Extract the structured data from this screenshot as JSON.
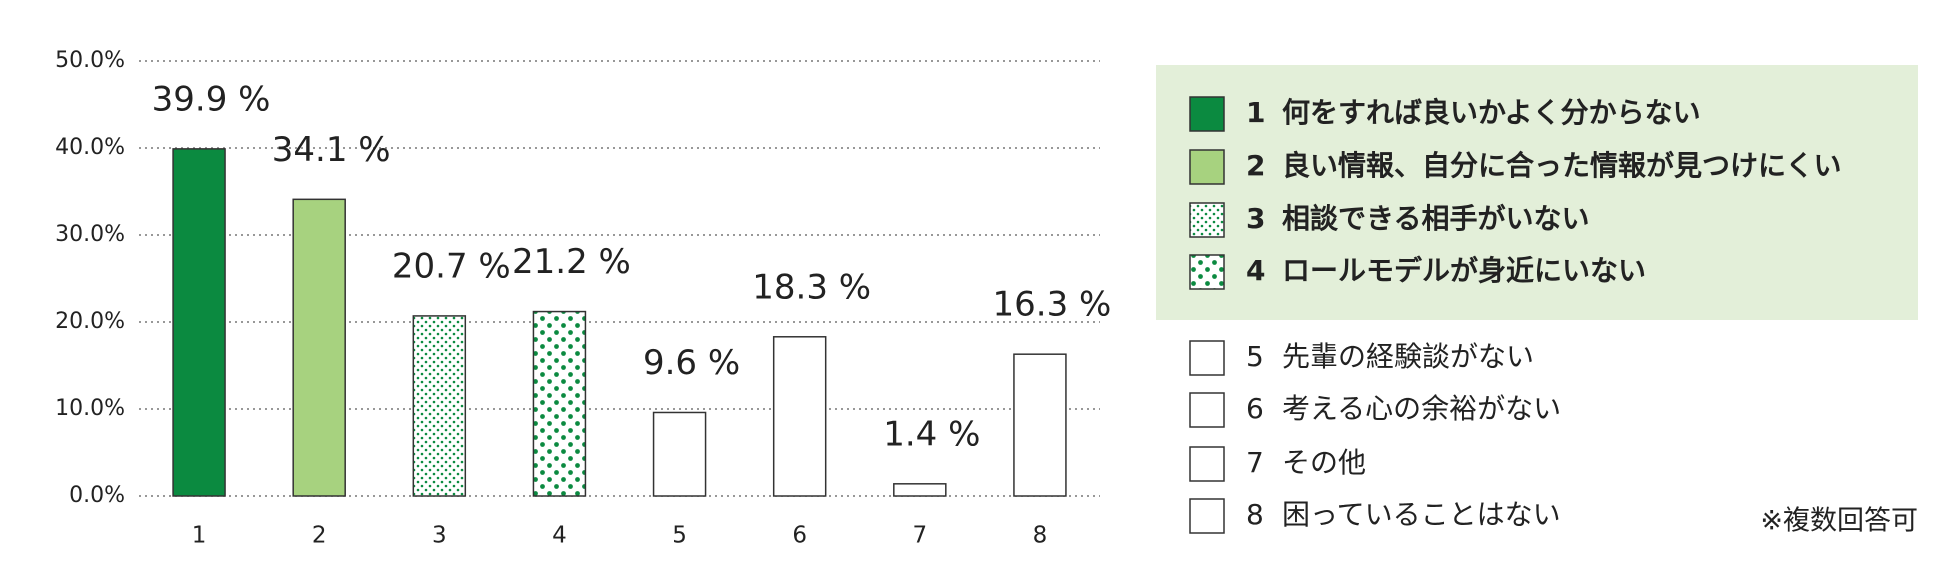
{
  "chart_data": {
    "type": "bar",
    "categories": [
      "1",
      "2",
      "3",
      "4",
      "5",
      "6",
      "7",
      "8"
    ],
    "values": [
      39.9,
      34.1,
      20.7,
      21.2,
      9.6,
      18.3,
      1.4,
      16.3
    ],
    "value_labels": [
      "39.9 %",
      "34.1 %",
      "20.7 %",
      "21.2 %",
      "9.6 %",
      "18.3 %",
      "1.4 %",
      "16.3 %"
    ],
    "fills": [
      "#0b8a40",
      "#a7d27f",
      "dots-small",
      "dots-large",
      "#ffffff",
      "#ffffff",
      "#ffffff",
      "#ffffff"
    ],
    "descriptions": [
      "何をすれば良いかよく分からない",
      "良い情報、自分に合った情報が見つけにくい",
      "相談できる相手がいない",
      "ロールモデルが身近にいない",
      "先輩の経験談がない",
      "考える心の余裕がない",
      "その他",
      "困っていることはない"
    ],
    "ylim": [
      0,
      50
    ],
    "yticks": [
      {
        "value": 0,
        "label": "0.0%"
      },
      {
        "value": 10,
        "label": "10.0%"
      },
      {
        "value": 20,
        "label": "20.0%"
      },
      {
        "value": 30,
        "label": "30.0%"
      },
      {
        "value": 40,
        "label": "40.0%"
      },
      {
        "value": 50,
        "label": "50.0%"
      }
    ],
    "grid": true,
    "note": "※複数回答可"
  }
}
